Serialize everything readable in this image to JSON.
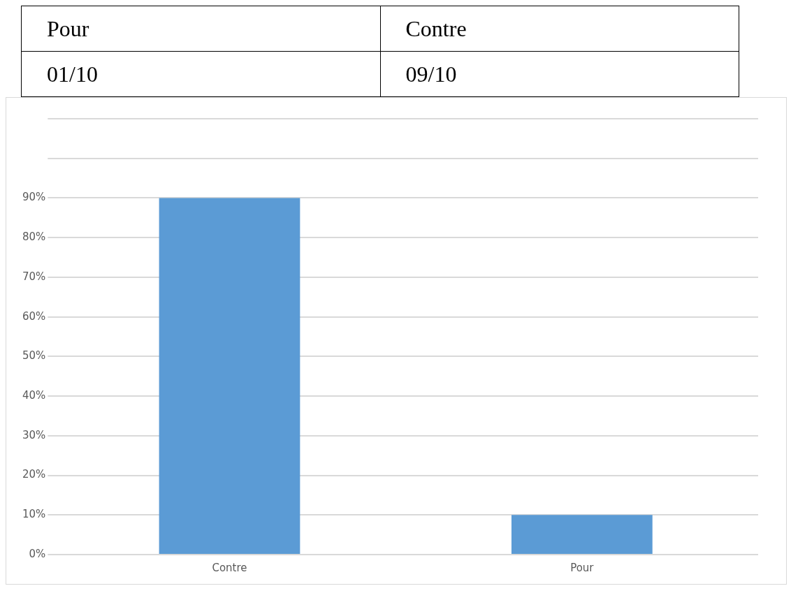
{
  "chart_data": {
    "type": "bar",
    "categories": [
      "Contre",
      "Pour"
    ],
    "values": [
      90,
      10
    ],
    "color": "#5b9bd5",
    "annotations": [
      "Pour",
      "Contre",
      "01/10",
      "09/10"
    ],
    "ylim": [
      0,
      110
    ],
    "yticks": [
      {
        "value": 0,
        "label": "0%"
      },
      {
        "value": 10,
        "label": "10%"
      },
      {
        "value": 20,
        "label": "20%"
      },
      {
        "value": 30,
        "label": "30%"
      },
      {
        "value": 40,
        "label": "40%"
      },
      {
        "value": 50,
        "label": "50%"
      },
      {
        "value": 60,
        "label": "60%"
      },
      {
        "value": 70,
        "label": "70%"
      },
      {
        "value": 80,
        "label": "80%"
      },
      {
        "value": 90,
        "label": "90%"
      },
      {
        "value": 100,
        "label": null
      },
      {
        "value": 110,
        "label": null
      }
    ],
    "grid": "y"
  }
}
